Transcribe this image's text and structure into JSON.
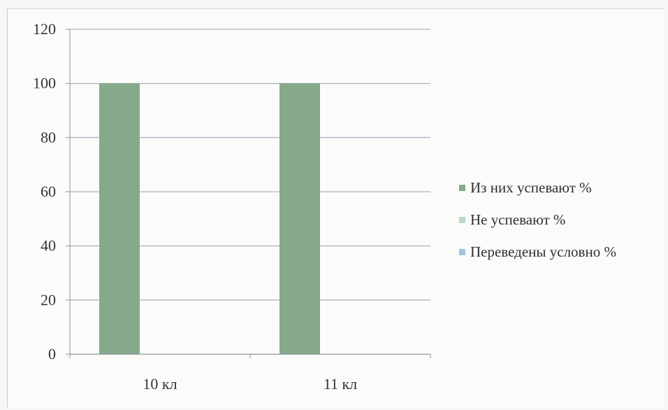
{
  "chart_data": {
    "type": "bar",
    "categories": [
      "10 кл",
      "11 кл"
    ],
    "series": [
      {
        "name": "Из них успевают %",
        "values": [
          100,
          100
        ],
        "color": "#86a98a"
      },
      {
        "name": "Не успевают %",
        "values": [
          0,
          0
        ],
        "color": "#b9d9c6"
      },
      {
        "name": "Переведены условно %",
        "values": [
          0,
          0
        ],
        "color": "#9ec4de"
      }
    ],
    "ylim": [
      0,
      120
    ],
    "yticks": [
      "0",
      "20",
      "40",
      "60",
      "80",
      "100",
      "120"
    ],
    "grid": true,
    "legend_position": "right"
  }
}
